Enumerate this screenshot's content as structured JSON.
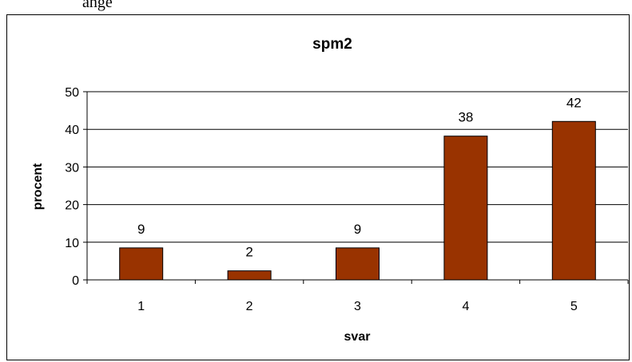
{
  "above_text": "ange",
  "chart_data": {
    "type": "bar",
    "title": "spm2",
    "xlabel": "svar",
    "ylabel": "procent",
    "categories": [
      "1",
      "2",
      "3",
      "4",
      "5"
    ],
    "values": [
      9,
      2,
      9,
      38,
      42
    ],
    "bar_heights": [
      8.5,
      2.4,
      8.5,
      38.2,
      42.1
    ],
    "ylim": [
      0,
      50
    ],
    "yticks": [
      0,
      10,
      20,
      30,
      40,
      50
    ],
    "grid": true,
    "legend": "none",
    "colors": {
      "bar": "#993300",
      "bar_stroke": "#000000",
      "grid": "#000000"
    }
  }
}
